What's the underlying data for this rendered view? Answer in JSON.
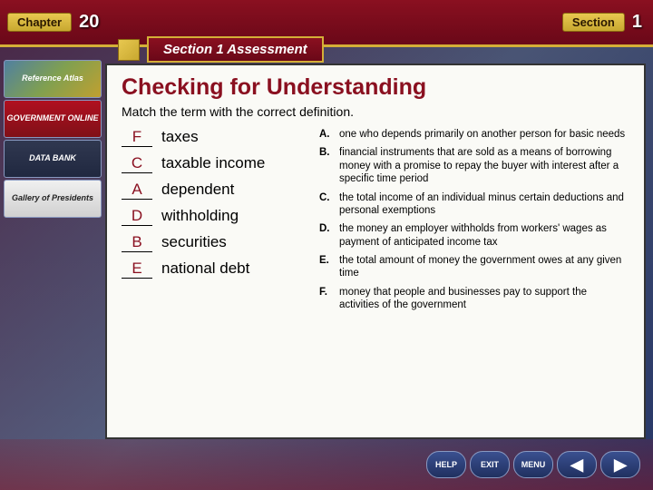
{
  "header": {
    "chapter_label": "Chapter",
    "chapter_number": "20",
    "section_label": "Section",
    "section_number": "1",
    "banner_bg": "#8a1020",
    "gold": "#d4af37"
  },
  "section_assessment_title": "Section 1 Assessment",
  "sidebar": {
    "items": [
      {
        "label": "Reference Atlas",
        "cls": "atlas"
      },
      {
        "label": "GOVERNMENT ONLINE",
        "cls": "gov"
      },
      {
        "label": "DATA BANK",
        "cls": "data"
      },
      {
        "label": "Gallery of Presidents",
        "cls": "gallery"
      }
    ]
  },
  "content": {
    "title": "Checking for Understanding",
    "instruction": "Match the term with the correct definition.",
    "title_color": "#8a1020",
    "answer_color": "#8a1020",
    "terms": [
      {
        "answer": "F",
        "term": "taxes"
      },
      {
        "answer": "C",
        "term": "taxable income"
      },
      {
        "answer": "A",
        "term": "dependent"
      },
      {
        "answer": "D",
        "term": "withholding"
      },
      {
        "answer": "B",
        "term": "securities"
      },
      {
        "answer": "E",
        "term": "national debt"
      }
    ],
    "definitions": [
      {
        "letter": "A.",
        "text": "one who depends primarily on another person for basic needs"
      },
      {
        "letter": "B.",
        "text": "financial instruments that are sold as a means of borrowing money with a promise to repay the buyer with interest after a specific time period"
      },
      {
        "letter": "C.",
        "text": "the total income of an individual minus certain deductions and personal exemptions"
      },
      {
        "letter": "D.",
        "text": "the money an employer withholds from workers' wages as payment of anticipated income tax"
      },
      {
        "letter": "E.",
        "text": "the total amount of money the government owes at any given time"
      },
      {
        "letter": "F.",
        "text": "money that people and businesses pay to support the activities of the government"
      }
    ]
  },
  "footer": {
    "buttons": [
      {
        "label": "HELP",
        "name": "help-button"
      },
      {
        "label": "EXIT",
        "name": "exit-button"
      },
      {
        "label": "MENU",
        "name": "menu-button"
      }
    ],
    "arrows": [
      {
        "label": "◀",
        "name": "prev-button"
      },
      {
        "label": "▶",
        "name": "next-button"
      }
    ]
  },
  "colors": {
    "content_bg": "#fafaf6",
    "slide_bg_top": "#1a2850",
    "slide_bg_bottom": "#2a3860"
  }
}
